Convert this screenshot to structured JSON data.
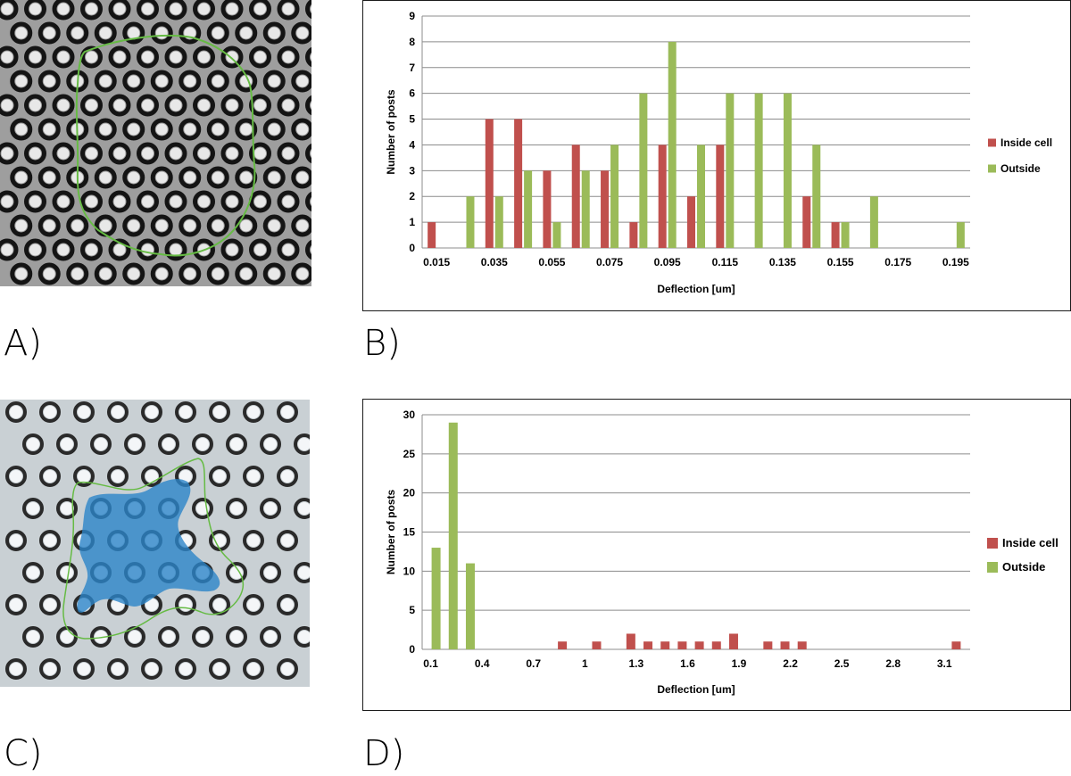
{
  "panel_labels": [
    "A)",
    "B)",
    "C)",
    "D)"
  ],
  "colors": {
    "inside": "#c0504d",
    "outside": "#9bbb59",
    "grid": "#8c8c8c",
    "outline": "#66bb44",
    "stain": "#2c84c8"
  },
  "images": [
    {
      "name": "micropost-array-cell-outline-gray",
      "description_icon": "microscope-image-icon"
    },
    {
      "name": "micropost-array-cell-stained-blue",
      "description_icon": "microscope-image-icon"
    }
  ],
  "chart_data": [
    {
      "type": "bar",
      "title": "",
      "xlabel": "Deflection [um]",
      "ylabel": "Number of posts",
      "ylim": [
        0,
        9
      ],
      "yticks": [
        0,
        1,
        2,
        3,
        4,
        5,
        6,
        7,
        8,
        9
      ],
      "categories": [
        0.015,
        0.025,
        0.035,
        0.045,
        0.055,
        0.065,
        0.075,
        0.085,
        0.095,
        0.105,
        0.115,
        0.125,
        0.135,
        0.145,
        0.155,
        0.165,
        0.175,
        0.185,
        0.195
      ],
      "xtick_labels": [
        "0.015",
        "0.035",
        "0.055",
        "0.075",
        "0.095",
        "0.115",
        "0.135",
        "0.155",
        "0.175",
        "0.195"
      ],
      "series": [
        {
          "name": "Inside cell",
          "values": [
            1,
            0,
            5,
            5,
            3,
            4,
            3,
            1,
            4,
            2,
            4,
            0,
            0,
            2,
            1,
            0,
            0,
            0,
            0
          ]
        },
        {
          "name": "Outside",
          "values": [
            0,
            2,
            2,
            3,
            1,
            3,
            4,
            6,
            8,
            4,
            6,
            6,
            6,
            4,
            1,
            2,
            0,
            0,
            1
          ]
        }
      ],
      "legend": "right",
      "grid": true
    },
    {
      "type": "bar",
      "title": "",
      "xlabel": "Deflection [um]",
      "ylabel": "Number of posts",
      "ylim": [
        0,
        30
      ],
      "yticks": [
        0,
        5,
        10,
        15,
        20,
        25,
        30
      ],
      "categories": [
        0.1,
        0.2,
        0.3,
        0.4,
        0.5,
        0.6,
        0.7,
        0.8,
        0.9,
        1.0,
        1.1,
        1.2,
        1.3,
        1.4,
        1.5,
        1.6,
        1.7,
        1.8,
        1.9,
        2.0,
        2.1,
        2.2,
        2.3,
        2.4,
        2.5,
        2.6,
        2.7,
        2.8,
        2.9,
        3.0,
        3.1,
        3.2
      ],
      "xtick_labels": [
        "0.1",
        "0.4",
        "0.7",
        "1",
        "1.3",
        "1.6",
        "1.9",
        "2.2",
        "2.5",
        "2.8",
        "3.1"
      ],
      "series": [
        {
          "name": "Inside cell",
          "values": [
            0,
            0,
            0,
            0,
            0,
            0,
            0,
            0,
            1,
            0,
            1,
            0,
            2,
            1,
            1,
            1,
            1,
            1,
            2,
            0,
            1,
            1,
            1,
            0,
            0,
            0,
            0,
            0,
            0,
            0,
            0,
            1
          ]
        },
        {
          "name": "Outside",
          "values": [
            13,
            29,
            11,
            0,
            0,
            0,
            0,
            0,
            0,
            0,
            0,
            0,
            0,
            0,
            0,
            0,
            0,
            0,
            0,
            0,
            0,
            0,
            0,
            0,
            0,
            0,
            0,
            0,
            0,
            0,
            0,
            0
          ]
        }
      ],
      "legend": "right",
      "grid": true
    }
  ]
}
